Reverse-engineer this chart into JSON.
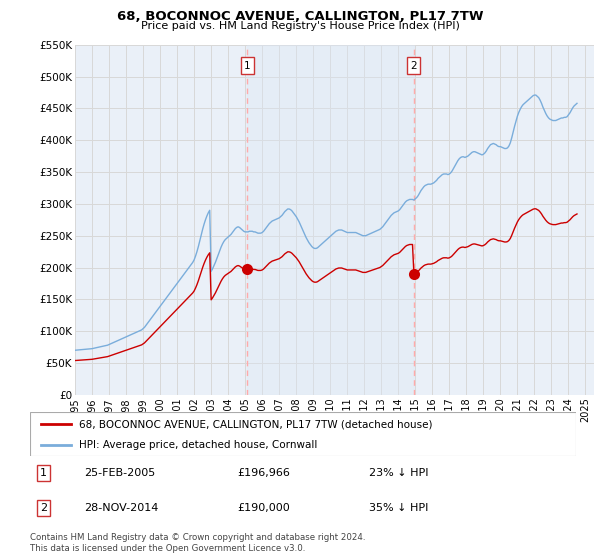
{
  "title": "68, BOCONNOC AVENUE, CALLINGTON, PL17 7TW",
  "subtitle": "Price paid vs. HM Land Registry's House Price Index (HPI)",
  "legend_line1": "68, BOCONNOC AVENUE, CALLINGTON, PL17 7TW (detached house)",
  "legend_line2": "HPI: Average price, detached house, Cornwall",
  "footer": "Contains HM Land Registry data © Crown copyright and database right 2024.\nThis data is licensed under the Open Government Licence v3.0.",
  "annotation1_label": "1",
  "annotation1_date": "25-FEB-2005",
  "annotation1_price": "£196,966",
  "annotation1_pct": "23% ↓ HPI",
  "annotation2_label": "2",
  "annotation2_date": "28-NOV-2014",
  "annotation2_price": "£190,000",
  "annotation2_pct": "35% ↓ HPI",
  "sale1_year": 2005.12,
  "sale1_price": 196966,
  "sale2_year": 2014.9,
  "sale2_price": 190000,
  "ylim": [
    0,
    550000
  ],
  "yticks": [
    0,
    50000,
    100000,
    150000,
    200000,
    250000,
    300000,
    350000,
    400000,
    450000,
    500000,
    550000
  ],
  "ytick_labels": [
    "£0",
    "£50K",
    "£100K",
    "£150K",
    "£200K",
    "£250K",
    "£300K",
    "£350K",
    "£400K",
    "£450K",
    "£500K",
    "£550K"
  ],
  "xlim_start": 1995.0,
  "xlim_end": 2025.5,
  "xtick_years": [
    1995,
    1996,
    1997,
    1998,
    1999,
    2000,
    2001,
    2002,
    2003,
    2004,
    2005,
    2006,
    2007,
    2008,
    2009,
    2010,
    2011,
    2012,
    2013,
    2014,
    2015,
    2016,
    2017,
    2018,
    2019,
    2020,
    2021,
    2022,
    2023,
    2024,
    2025
  ],
  "red_color": "#cc0000",
  "blue_color": "#7aaddb",
  "vline_color": "#ffaaaa",
  "background_color": "#ffffff",
  "grid_color": "#d8d8d8",
  "span_color": "#dde8f5",
  "hpi_data": {
    "years": [
      1995.0,
      1995.083,
      1995.167,
      1995.25,
      1995.333,
      1995.417,
      1995.5,
      1995.583,
      1995.667,
      1995.75,
      1995.833,
      1995.917,
      1996.0,
      1996.083,
      1996.167,
      1996.25,
      1996.333,
      1996.417,
      1996.5,
      1996.583,
      1996.667,
      1996.75,
      1996.833,
      1996.917,
      1997.0,
      1997.083,
      1997.167,
      1997.25,
      1997.333,
      1997.417,
      1997.5,
      1997.583,
      1997.667,
      1997.75,
      1997.833,
      1997.917,
      1998.0,
      1998.083,
      1998.167,
      1998.25,
      1998.333,
      1998.417,
      1998.5,
      1998.583,
      1998.667,
      1998.75,
      1998.833,
      1998.917,
      1999.0,
      1999.083,
      1999.167,
      1999.25,
      1999.333,
      1999.417,
      1999.5,
      1999.583,
      1999.667,
      1999.75,
      1999.833,
      1999.917,
      2000.0,
      2000.083,
      2000.167,
      2000.25,
      2000.333,
      2000.417,
      2000.5,
      2000.583,
      2000.667,
      2000.75,
      2000.833,
      2000.917,
      2001.0,
      2001.083,
      2001.167,
      2001.25,
      2001.333,
      2001.417,
      2001.5,
      2001.583,
      2001.667,
      2001.75,
      2001.833,
      2001.917,
      2002.0,
      2002.083,
      2002.167,
      2002.25,
      2002.333,
      2002.417,
      2002.5,
      2002.583,
      2002.667,
      2002.75,
      2002.833,
      2002.917,
      2003.0,
      2003.083,
      2003.167,
      2003.25,
      2003.333,
      2003.417,
      2003.5,
      2003.583,
      2003.667,
      2003.75,
      2003.833,
      2003.917,
      2004.0,
      2004.083,
      2004.167,
      2004.25,
      2004.333,
      2004.417,
      2004.5,
      2004.583,
      2004.667,
      2004.75,
      2004.833,
      2004.917,
      2005.0,
      2005.083,
      2005.167,
      2005.25,
      2005.333,
      2005.417,
      2005.5,
      2005.583,
      2005.667,
      2005.75,
      2005.833,
      2005.917,
      2006.0,
      2006.083,
      2006.167,
      2006.25,
      2006.333,
      2006.417,
      2006.5,
      2006.583,
      2006.667,
      2006.75,
      2006.833,
      2006.917,
      2007.0,
      2007.083,
      2007.167,
      2007.25,
      2007.333,
      2007.417,
      2007.5,
      2007.583,
      2007.667,
      2007.75,
      2007.833,
      2007.917,
      2008.0,
      2008.083,
      2008.167,
      2008.25,
      2008.333,
      2008.417,
      2008.5,
      2008.583,
      2008.667,
      2008.75,
      2008.833,
      2008.917,
      2009.0,
      2009.083,
      2009.167,
      2009.25,
      2009.333,
      2009.417,
      2009.5,
      2009.583,
      2009.667,
      2009.75,
      2009.833,
      2009.917,
      2010.0,
      2010.083,
      2010.167,
      2010.25,
      2010.333,
      2010.417,
      2010.5,
      2010.583,
      2010.667,
      2010.75,
      2010.833,
      2010.917,
      2011.0,
      2011.083,
      2011.167,
      2011.25,
      2011.333,
      2011.417,
      2011.5,
      2011.583,
      2011.667,
      2011.75,
      2011.833,
      2011.917,
      2012.0,
      2012.083,
      2012.167,
      2012.25,
      2012.333,
      2012.417,
      2012.5,
      2012.583,
      2012.667,
      2012.75,
      2012.833,
      2012.917,
      2013.0,
      2013.083,
      2013.167,
      2013.25,
      2013.333,
      2013.417,
      2013.5,
      2013.583,
      2013.667,
      2013.75,
      2013.833,
      2013.917,
      2014.0,
      2014.083,
      2014.167,
      2014.25,
      2014.333,
      2014.417,
      2014.5,
      2014.583,
      2014.667,
      2014.75,
      2014.833,
      2014.917,
      2015.0,
      2015.083,
      2015.167,
      2015.25,
      2015.333,
      2015.417,
      2015.5,
      2015.583,
      2015.667,
      2015.75,
      2015.833,
      2015.917,
      2016.0,
      2016.083,
      2016.167,
      2016.25,
      2016.333,
      2016.417,
      2016.5,
      2016.583,
      2016.667,
      2016.75,
      2016.833,
      2016.917,
      2017.0,
      2017.083,
      2017.167,
      2017.25,
      2017.333,
      2017.417,
      2017.5,
      2017.583,
      2017.667,
      2017.75,
      2017.833,
      2017.917,
      2018.0,
      2018.083,
      2018.167,
      2018.25,
      2018.333,
      2018.417,
      2018.5,
      2018.583,
      2018.667,
      2018.75,
      2018.833,
      2018.917,
      2019.0,
      2019.083,
      2019.167,
      2019.25,
      2019.333,
      2019.417,
      2019.5,
      2019.583,
      2019.667,
      2019.75,
      2019.833,
      2019.917,
      2020.0,
      2020.083,
      2020.167,
      2020.25,
      2020.333,
      2020.417,
      2020.5,
      2020.583,
      2020.667,
      2020.75,
      2020.833,
      2020.917,
      2021.0,
      2021.083,
      2021.167,
      2021.25,
      2021.333,
      2021.417,
      2021.5,
      2021.583,
      2021.667,
      2021.75,
      2021.833,
      2021.917,
      2022.0,
      2022.083,
      2022.167,
      2022.25,
      2022.333,
      2022.417,
      2022.5,
      2022.583,
      2022.667,
      2022.75,
      2022.833,
      2022.917,
      2023.0,
      2023.083,
      2023.167,
      2023.25,
      2023.333,
      2023.417,
      2023.5,
      2023.583,
      2023.667,
      2023.75,
      2023.833,
      2023.917,
      2024.0,
      2024.083,
      2024.167,
      2024.25,
      2024.333,
      2024.417,
      2024.5
    ],
    "values": [
      70000,
      70200,
      70400,
      70600,
      70800,
      71000,
      71200,
      71400,
      71600,
      71800,
      72000,
      72200,
      72500,
      73000,
      73500,
      74000,
      74500,
      75000,
      75500,
      76000,
      76500,
      77000,
      77500,
      78000,
      79000,
      80000,
      81000,
      82000,
      83000,
      84000,
      85000,
      86000,
      87000,
      88000,
      89000,
      90000,
      91000,
      92000,
      93000,
      94000,
      95000,
      96000,
      97000,
      98000,
      99000,
      100000,
      101000,
      102000,
      104000,
      106000,
      109000,
      112000,
      115000,
      118000,
      121000,
      124000,
      127000,
      130000,
      133000,
      136000,
      139000,
      142000,
      145000,
      148000,
      151000,
      154000,
      157000,
      160000,
      163000,
      166000,
      169000,
      172000,
      175000,
      178000,
      181000,
      184000,
      187000,
      190000,
      193000,
      196000,
      199000,
      202000,
      205000,
      208000,
      212000,
      218000,
      225000,
      233000,
      242000,
      251000,
      260000,
      268000,
      275000,
      281000,
      286000,
      290000,
      194000,
      198000,
      203000,
      208000,
      214000,
      220000,
      226000,
      232000,
      237000,
      241000,
      244000,
      246000,
      248000,
      250000,
      252000,
      255000,
      258000,
      261000,
      263000,
      264000,
      263000,
      261000,
      259000,
      257000,
      256000,
      256000,
      256000,
      257000,
      257000,
      257000,
      256000,
      256000,
      255000,
      254000,
      254000,
      254000,
      255000,
      257000,
      260000,
      263000,
      266000,
      269000,
      271000,
      273000,
      274000,
      275000,
      276000,
      277000,
      278000,
      280000,
      282000,
      285000,
      288000,
      290000,
      292000,
      292000,
      291000,
      289000,
      286000,
      283000,
      280000,
      276000,
      272000,
      267000,
      262000,
      257000,
      252000,
      247000,
      243000,
      239000,
      236000,
      233000,
      231000,
      230000,
      230000,
      231000,
      233000,
      235000,
      237000,
      239000,
      241000,
      243000,
      245000,
      247000,
      249000,
      251000,
      253000,
      255000,
      257000,
      258000,
      259000,
      259000,
      259000,
      258000,
      257000,
      256000,
      255000,
      255000,
      255000,
      255000,
      255000,
      255000,
      255000,
      254000,
      253000,
      252000,
      251000,
      250000,
      250000,
      250000,
      251000,
      252000,
      253000,
      254000,
      255000,
      256000,
      257000,
      258000,
      259000,
      260000,
      262000,
      264000,
      267000,
      270000,
      273000,
      276000,
      279000,
      282000,
      284000,
      286000,
      287000,
      288000,
      289000,
      291000,
      294000,
      297000,
      300000,
      303000,
      305000,
      306000,
      307000,
      307000,
      307000,
      306000,
      308000,
      310000,
      313000,
      317000,
      321000,
      324000,
      327000,
      329000,
      330000,
      331000,
      331000,
      331000,
      332000,
      333000,
      335000,
      337000,
      340000,
      342000,
      344000,
      346000,
      347000,
      347000,
      347000,
      346000,
      347000,
      349000,
      352000,
      356000,
      360000,
      364000,
      368000,
      371000,
      373000,
      374000,
      374000,
      373000,
      374000,
      375000,
      377000,
      379000,
      381000,
      382000,
      382000,
      381000,
      380000,
      379000,
      378000,
      377000,
      378000,
      380000,
      383000,
      387000,
      390000,
      393000,
      394000,
      395000,
      394000,
      393000,
      391000,
      390000,
      390000,
      389000,
      388000,
      387000,
      387000,
      388000,
      391000,
      396000,
      404000,
      413000,
      422000,
      430000,
      438000,
      444000,
      449000,
      453000,
      456000,
      458000,
      460000,
      462000,
      464000,
      466000,
      468000,
      470000,
      471000,
      471000,
      469000,
      467000,
      463000,
      458000,
      452000,
      447000,
      442000,
      438000,
      435000,
      433000,
      432000,
      431000,
      431000,
      431000,
      432000,
      433000,
      434000,
      435000,
      435000,
      436000,
      436000,
      437000,
      440000,
      443000,
      447000,
      451000,
      454000,
      456000,
      458000
    ]
  },
  "red_index_scale": 196966,
  "red_index_hpi_base": 256000,
  "red_index_scale2": 190000,
  "red_index_hpi_base2": 306000
}
